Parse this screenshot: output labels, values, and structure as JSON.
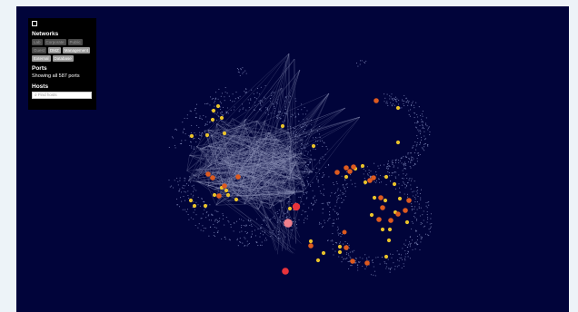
{
  "panel": {
    "collapse_icon": "collapse-icon",
    "networks_heading": "Networks",
    "networks": [
      {
        "label": "Lab",
        "active": false
      },
      {
        "label": "Corporate",
        "active": false
      },
      {
        "label": "Public",
        "active": false
      },
      {
        "label": "Guest",
        "active": false
      },
      {
        "label": "DMZ",
        "active": true
      },
      {
        "label": "Management",
        "active": true
      },
      {
        "label": "External",
        "active": true
      },
      {
        "label": "Database",
        "active": true
      }
    ],
    "ports_heading": "Ports",
    "ports_text": "Showing all 587 ports",
    "hosts_heading": "Hosts",
    "hosts_search": {
      "placeholder": "Find hosts",
      "icon": "search-icon"
    }
  },
  "colors": {
    "background": "#01043a",
    "edge": "#8f94b8",
    "port_dot": "#8f99c8",
    "node_yellow": "#e9c22a",
    "node_orange": "#dd5a1f",
    "node_red": "#e8333b",
    "node_pink": "#f07f8c"
  }
}
